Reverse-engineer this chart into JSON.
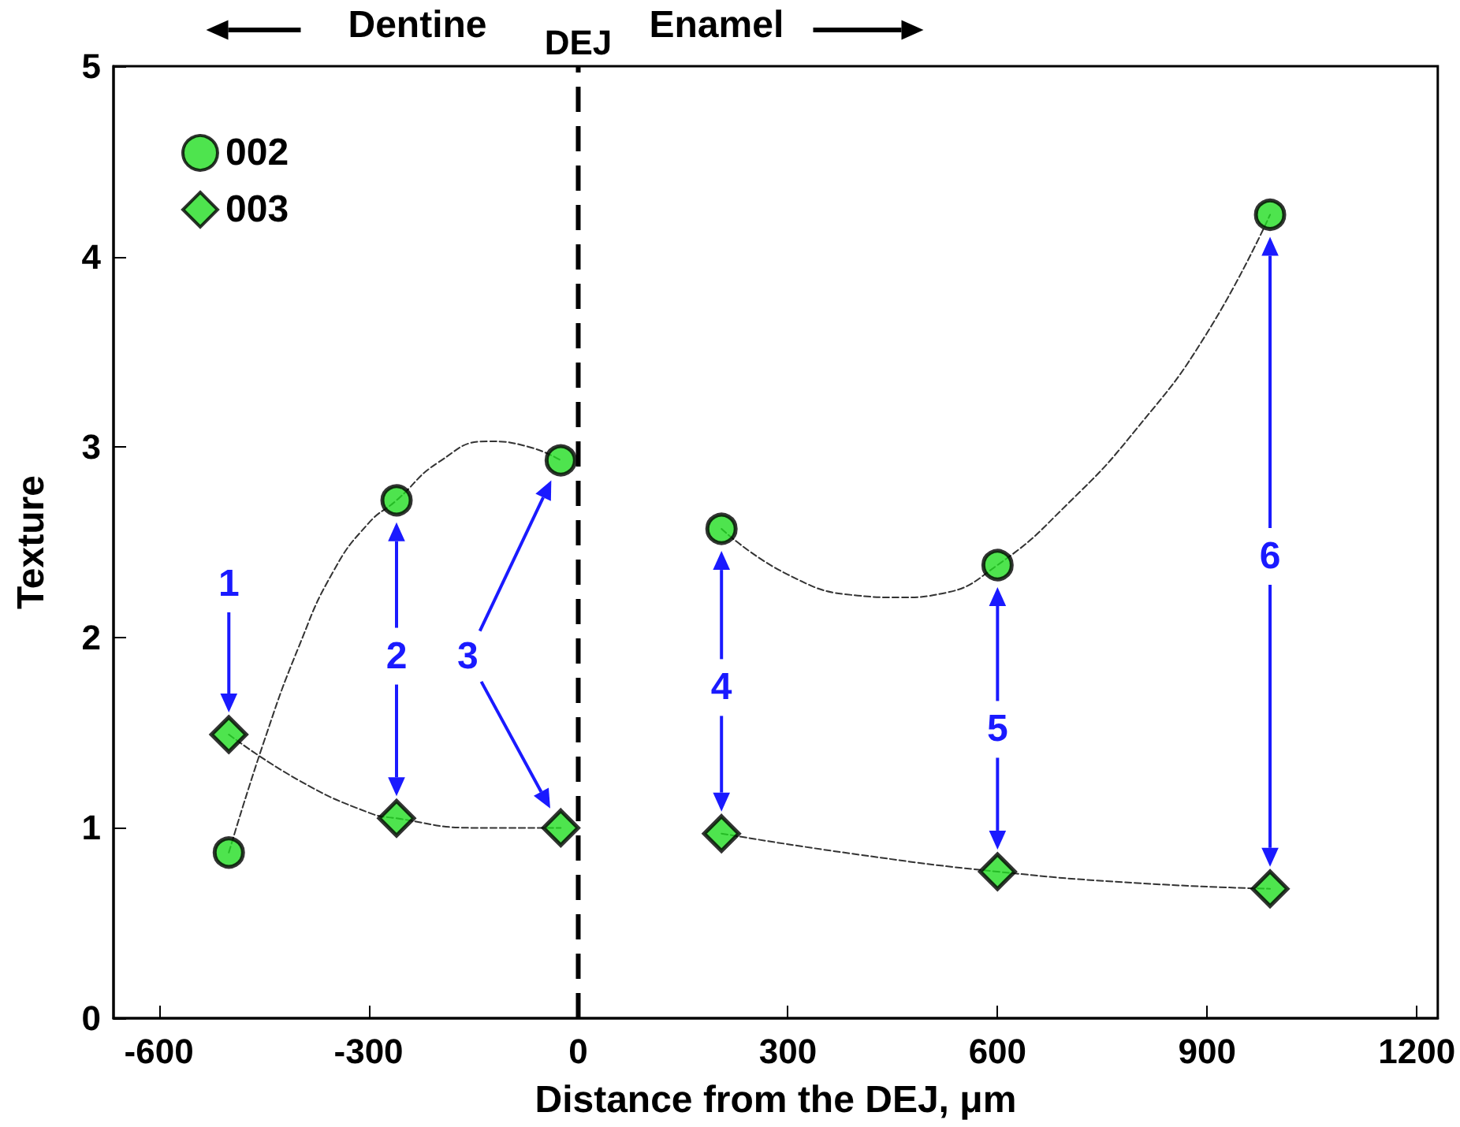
{
  "chart_data": {
    "type": "scatter",
    "xlabel": "Distance from the DEJ, μm",
    "ylabel": "Texture",
    "x": [
      -500,
      -260,
      -25,
      205,
      600,
      990
    ],
    "series": [
      {
        "name": "002",
        "color": "#22dd22",
        "marker": "circle",
        "values": [
          0.87,
          2.72,
          2.93,
          2.57,
          2.38,
          4.22
        ]
      },
      {
        "name": "003",
        "color": "#22dd22",
        "marker": "diamond",
        "values": [
          1.49,
          1.05,
          1.0,
          0.97,
          0.77,
          0.68
        ]
      },
      {
        "type": "line",
        "color": "#333333",
        "marker": "none",
        "line_style": "dashed",
        "x": [
          -500,
          -450,
          -400,
          -350,
          -300,
          -260,
          -200,
          -130,
          -70,
          -25
        ],
        "values": [
          0.87,
          1.45,
          1.95,
          2.35,
          2.6,
          2.72,
          2.92,
          3.03,
          3.0,
          2.93
        ]
      },
      {
        "type": "line",
        "color": "#333333",
        "marker": "none",
        "line_style": "dashed",
        "x": [
          205,
          300,
          400,
          460,
          520,
          600,
          700,
          800,
          900,
          990
        ],
        "values": [
          2.57,
          2.33,
          2.22,
          2.21,
          2.23,
          2.38,
          2.7,
          3.1,
          3.6,
          4.22
        ]
      },
      {
        "type": "line",
        "color": "#333333",
        "marker": "none",
        "line_style": "dashed",
        "x": [
          -500,
          -400,
          -300,
          -260,
          -150,
          -25
        ],
        "values": [
          1.49,
          1.25,
          1.08,
          1.05,
          1.0,
          1.0
        ]
      },
      {
        "type": "line",
        "color": "#333333",
        "marker": "none",
        "line_style": "dashed",
        "x": [
          205,
          400,
          600,
          800,
          990
        ],
        "values": [
          0.97,
          0.86,
          0.77,
          0.71,
          0.68
        ]
      }
    ],
    "xlim": [
      -665,
      1230
    ],
    "xticks": [
      -600,
      -300,
      0,
      300,
      600,
      900,
      1200
    ],
    "ylim": [
      0,
      5
    ],
    "yticks": [
      0,
      1,
      2,
      3,
      4,
      5
    ],
    "grid": false,
    "legend": "top left",
    "ref_lines": [
      {
        "axis": "x",
        "value": 0,
        "label": "DEJ",
        "color": "#000000",
        "line_style": "dashed"
      }
    ],
    "annotations": [
      "Dentine",
      "Enamel",
      "1",
      "2",
      "3",
      "4",
      "5",
      "6"
    ]
  }
}
